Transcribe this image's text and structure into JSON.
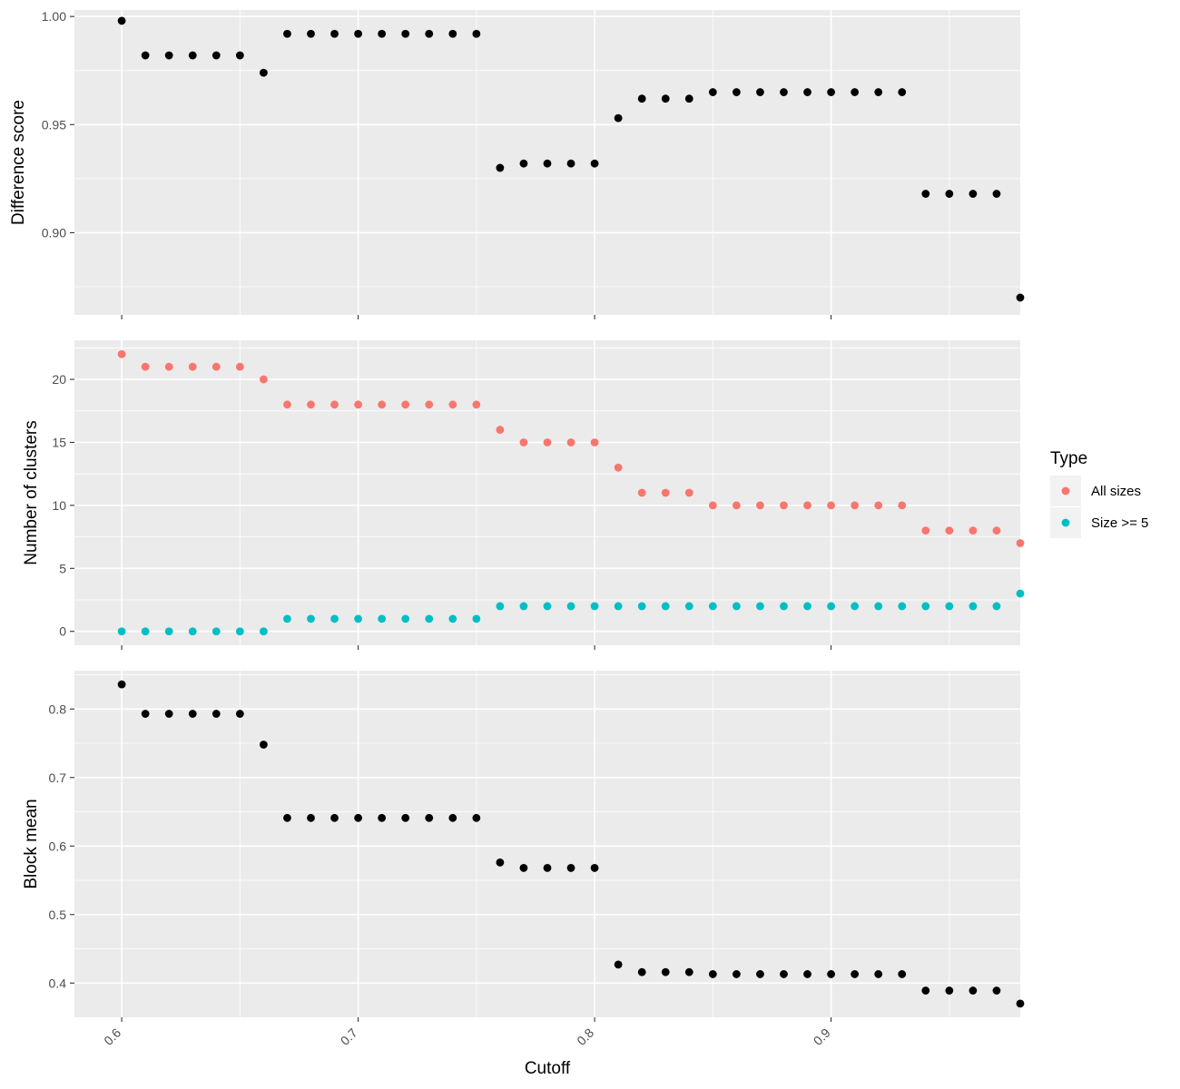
{
  "chart_data": [
    {
      "type": "scatter",
      "title": "",
      "ylabel": "Difference score",
      "xlabel": "",
      "xlim": [
        0.58,
        0.98
      ],
      "ylim": [
        0.862,
        1.003
      ],
      "yticks": [
        0.9,
        0.95,
        1.0
      ],
      "ytick_labels": [
        "0.90",
        "0.95",
        "1.00"
      ],
      "xticks": [
        0.6,
        0.7,
        0.8,
        0.9
      ],
      "grid": true,
      "colors": {
        "points": "#000000"
      },
      "x": [
        0.6,
        0.61,
        0.62,
        0.63,
        0.64,
        0.65,
        0.66,
        0.67,
        0.68,
        0.69,
        0.7,
        0.71,
        0.72,
        0.73,
        0.74,
        0.75,
        0.76,
        0.77,
        0.78,
        0.79,
        0.8,
        0.81,
        0.82,
        0.83,
        0.84,
        0.85,
        0.86,
        0.87,
        0.88,
        0.89,
        0.9,
        0.91,
        0.92,
        0.93,
        0.94,
        0.95,
        0.96,
        0.97,
        0.98
      ],
      "series": [
        {
          "values": [
            0.998,
            0.982,
            0.982,
            0.982,
            0.982,
            0.982,
            0.974,
            0.992,
            0.992,
            0.992,
            0.992,
            0.992,
            0.992,
            0.992,
            0.992,
            0.992,
            0.93,
            0.932,
            0.932,
            0.932,
            0.932,
            0.953,
            0.962,
            0.962,
            0.962,
            0.965,
            0.965,
            0.965,
            0.965,
            0.965,
            0.965,
            0.965,
            0.965,
            0.965,
            0.918,
            0.918,
            0.918,
            0.918,
            0.87
          ]
        }
      ]
    },
    {
      "type": "scatter",
      "title": "",
      "ylabel": "Number of clusters",
      "xlabel": "",
      "xlim": [
        0.58,
        0.98
      ],
      "ylim": [
        -1.1,
        23.1
      ],
      "yticks": [
        0,
        5,
        10,
        15,
        20
      ],
      "ytick_labels": [
        "0",
        "5",
        "10",
        "15",
        "20"
      ],
      "xticks": [
        0.6,
        0.7,
        0.8,
        0.9
      ],
      "grid": true,
      "x": [
        0.6,
        0.61,
        0.62,
        0.63,
        0.64,
        0.65,
        0.66,
        0.67,
        0.68,
        0.69,
        0.7,
        0.71,
        0.72,
        0.73,
        0.74,
        0.75,
        0.76,
        0.77,
        0.78,
        0.79,
        0.8,
        0.81,
        0.82,
        0.83,
        0.84,
        0.85,
        0.86,
        0.87,
        0.88,
        0.89,
        0.9,
        0.91,
        0.92,
        0.93,
        0.94,
        0.95,
        0.96,
        0.97,
        0.98
      ],
      "series": [
        {
          "name": "All sizes",
          "color": "#F8766D",
          "values": [
            22,
            21,
            21,
            21,
            21,
            21,
            20,
            18,
            18,
            18,
            18,
            18,
            18,
            18,
            18,
            18,
            16,
            15,
            15,
            15,
            15,
            13,
            11,
            11,
            11,
            10,
            10,
            10,
            10,
            10,
            10,
            10,
            10,
            10,
            8,
            8,
            8,
            8,
            7
          ]
        },
        {
          "name": "Size >= 5",
          "color": "#00BFC4",
          "values": [
            0,
            0,
            0,
            0,
            0,
            0,
            0,
            1,
            1,
            1,
            1,
            1,
            1,
            1,
            1,
            1,
            2,
            2,
            2,
            2,
            2,
            2,
            2,
            2,
            2,
            2,
            2,
            2,
            2,
            2,
            2,
            2,
            2,
            2,
            2,
            2,
            2,
            2,
            3
          ]
        }
      ],
      "legend": {
        "title": "Type",
        "placement": "right",
        "entries": [
          "All sizes",
          "Size >= 5"
        ]
      }
    },
    {
      "type": "scatter",
      "title": "",
      "ylabel": "Block mean",
      "xlabel": "Cutoff",
      "xlim": [
        0.58,
        0.98
      ],
      "ylim": [
        0.35,
        0.856
      ],
      "yticks": [
        0.4,
        0.5,
        0.6,
        0.7,
        0.8
      ],
      "ytick_labels": [
        "0.4",
        "0.5",
        "0.6",
        "0.7",
        "0.8"
      ],
      "xticks": [
        0.6,
        0.7,
        0.8,
        0.9
      ],
      "xtick_labels": [
        "0.6",
        "0.7",
        "0.8",
        "0.9"
      ],
      "grid": true,
      "colors": {
        "points": "#000000"
      },
      "x": [
        0.6,
        0.61,
        0.62,
        0.63,
        0.64,
        0.65,
        0.66,
        0.67,
        0.68,
        0.69,
        0.7,
        0.71,
        0.72,
        0.73,
        0.74,
        0.75,
        0.76,
        0.77,
        0.78,
        0.79,
        0.8,
        0.81,
        0.82,
        0.83,
        0.84,
        0.85,
        0.86,
        0.87,
        0.88,
        0.89,
        0.9,
        0.91,
        0.92,
        0.93,
        0.94,
        0.95,
        0.96,
        0.97,
        0.98
      ],
      "series": [
        {
          "values": [
            0.836,
            0.793,
            0.793,
            0.793,
            0.793,
            0.793,
            0.748,
            0.641,
            0.641,
            0.641,
            0.641,
            0.641,
            0.641,
            0.641,
            0.641,
            0.641,
            0.576,
            0.568,
            0.568,
            0.568,
            0.568,
            0.427,
            0.416,
            0.416,
            0.416,
            0.413,
            0.413,
            0.413,
            0.413,
            0.413,
            0.413,
            0.413,
            0.413,
            0.413,
            0.389,
            0.389,
            0.389,
            0.389,
            0.37
          ]
        }
      ]
    }
  ]
}
